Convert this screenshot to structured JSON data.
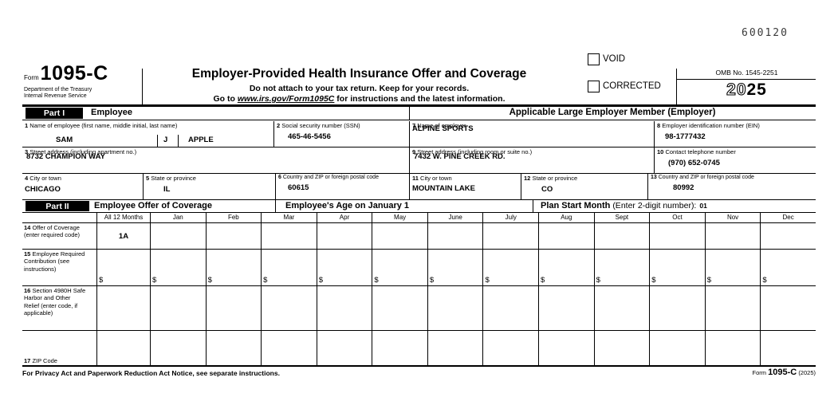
{
  "serial": "600120",
  "header": {
    "form_word": "Form",
    "form_number": "1095-C",
    "dept_line1": "Department of the Treasury",
    "dept_line2": "Internal Revenue Service",
    "title": "Employer-Provided Health Insurance Offer and Coverage",
    "subtitle1": "Do not attach to your tax return. Keep for your records.",
    "goto_prefix": "Go to ",
    "goto_url": "www.irs.gov/Form1095C",
    "goto_suffix": " for instructions and the latest information.",
    "void_label": "VOID",
    "corrected_label": "CORRECTED",
    "omb": "OMB No. 1545-2251",
    "year_prefix": "20",
    "year_suffix": "25"
  },
  "part1": {
    "bar_label": "Part I",
    "left_title": "Employee",
    "right_title": "Applicable Large Employer Member (Employer)",
    "fields": {
      "f1": {
        "num": "1",
        "label": "Name of employee (first name, middle initial, last name)",
        "first": "SAM",
        "middle": "J",
        "last": "APPLE"
      },
      "f2": {
        "num": "2",
        "label": "Social security number (SSN)",
        "value": "465-46-5456"
      },
      "f3": {
        "num": "3",
        "label": "Street address (including apartment no.)",
        "value": "8732 CHAMPION WAY"
      },
      "f4": {
        "num": "4",
        "label": "City or town",
        "value": "CHICAGO"
      },
      "f5": {
        "num": "5",
        "label": "State or province",
        "value": "IL"
      },
      "f6": {
        "num": "6",
        "label": "Country and ZIP or foreign postal code",
        "value": "60615"
      },
      "f7": {
        "num": "7",
        "label": "Name of employer",
        "value": "ALPINE SPORTS"
      },
      "f8": {
        "num": "8",
        "label": "Employer identification number (EIN)",
        "value": "98-1777432"
      },
      "f9": {
        "num": "9",
        "label": "Street address (including room or suite no.)",
        "value": "7432 W. PINE CREEK RD."
      },
      "f10": {
        "num": "10",
        "label": "Contact telephone number",
        "value": "(970) 652-0745"
      },
      "f11": {
        "num": "11",
        "label": "City or town",
        "value": "MOUNTAIN LAKE"
      },
      "f12": {
        "num": "12",
        "label": "State or province",
        "value": "CO"
      },
      "f13": {
        "num": "13",
        "label": "Country and ZIP or foreign postal code",
        "value": "80992"
      }
    }
  },
  "part2": {
    "bar_label": "Part II",
    "left_title": "Employee Offer of Coverage",
    "mid_title": "Employee's Age on January 1",
    "plan_label": "Plan Start Month",
    "plan_hint": "(Enter 2-digit number):",
    "plan_value": "01",
    "months": [
      "All 12 Months",
      "Jan",
      "Feb",
      "Mar",
      "Apr",
      "May",
      "June",
      "July",
      "Aug",
      "Sept",
      "Oct",
      "Nov",
      "Dec"
    ],
    "dollar": "$",
    "rows": {
      "r14": {
        "num": "14",
        "label": "Offer of Coverage (enter required code)",
        "all12_value": "1A"
      },
      "r15": {
        "num": "15",
        "label": "Employee Required Contribution (see instructions)"
      },
      "r16": {
        "num": "16",
        "label": "Section 4980H Safe Harbor and Other Relief (enter code, if applicable)"
      },
      "r17": {
        "num": "17",
        "label": "ZIP Code"
      }
    }
  },
  "footer": {
    "notice": "For Privacy Act and Paperwork Reduction Act Notice, see separate instructions.",
    "form_word": "Form",
    "form_number": "1095-C",
    "year": "(2025)"
  }
}
